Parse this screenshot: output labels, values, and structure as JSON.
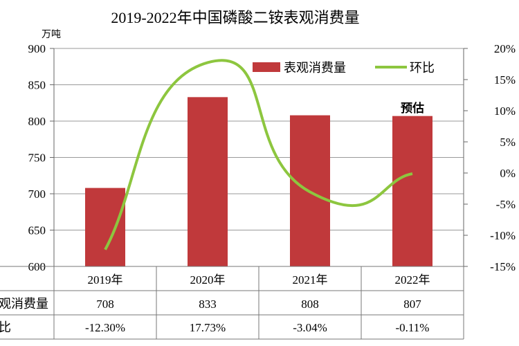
{
  "chart_data": {
    "type": "bar+line",
    "title": "2019-2022年中国磷酸二铵表观消费量",
    "ylabel_left": "万吨",
    "categories": [
      "2019年",
      "2020年",
      "2021年",
      "2022年"
    ],
    "ylim_left": [
      600,
      900
    ],
    "yticks_left": [
      "600",
      "650",
      "700",
      "750",
      "800",
      "850",
      "900"
    ],
    "ylim_right": [
      -15,
      20
    ],
    "yticks_right": [
      "-15%",
      "-10%",
      "-5%",
      "0%",
      "5%",
      "10%",
      "15%",
      "20%"
    ],
    "grid": true,
    "legend_position": "top-right",
    "series": [
      {
        "name": "表观消费量",
        "type": "bar",
        "color": "#c0393b",
        "values": [
          708,
          833,
          808,
          807
        ]
      },
      {
        "name": "环比",
        "type": "line",
        "color": "#8dc63f",
        "values": [
          -12.3,
          17.73,
          -3.04,
          -0.11
        ]
      }
    ],
    "annotation": "预估",
    "table": {
      "row_labels": [
        "观消费量",
        "比"
      ],
      "values": [
        "708",
        "833",
        "808",
        "807"
      ],
      "pct": [
        "-12.30%",
        "17.73%",
        "-3.04%",
        "-0.11%"
      ]
    }
  }
}
